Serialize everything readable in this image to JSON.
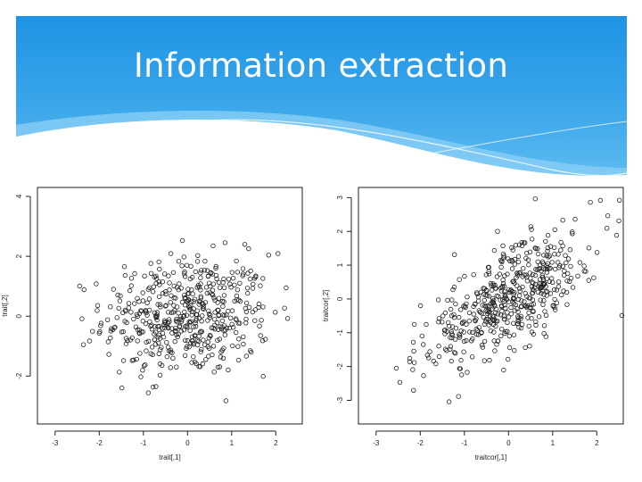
{
  "slide": {
    "title": "Information extraction",
    "colors": {
      "header_blue": "#2C9BE6",
      "header_light": "#8CD0F6",
      "ink": "#222222"
    }
  },
  "chart_data": [
    {
      "type": "scatter",
      "xlabel": "trait[,1]",
      "ylabel": "trait[,2]",
      "xticks": [
        -3,
        -2,
        -1,
        0,
        1,
        2
      ],
      "yticks": [
        -2,
        0,
        2,
        4
      ],
      "xlim": [
        -3.4,
        2.6
      ],
      "ylim": [
        -3.6,
        4.3
      ],
      "grid": false,
      "correlation": 0.05,
      "n_points": 500
    },
    {
      "type": "scatter",
      "xlabel": "traitcor[,1]",
      "ylabel": "traitcor[,2]",
      "xticks": [
        -3,
        -2,
        -1,
        0,
        1,
        2
      ],
      "yticks": [
        -3,
        -2,
        -1,
        0,
        1,
        2,
        3
      ],
      "xlim": [
        -3.4,
        2.6
      ],
      "ylim": [
        -3.7,
        3.3
      ],
      "grid": false,
      "correlation": 0.7,
      "n_points": 500
    }
  ]
}
